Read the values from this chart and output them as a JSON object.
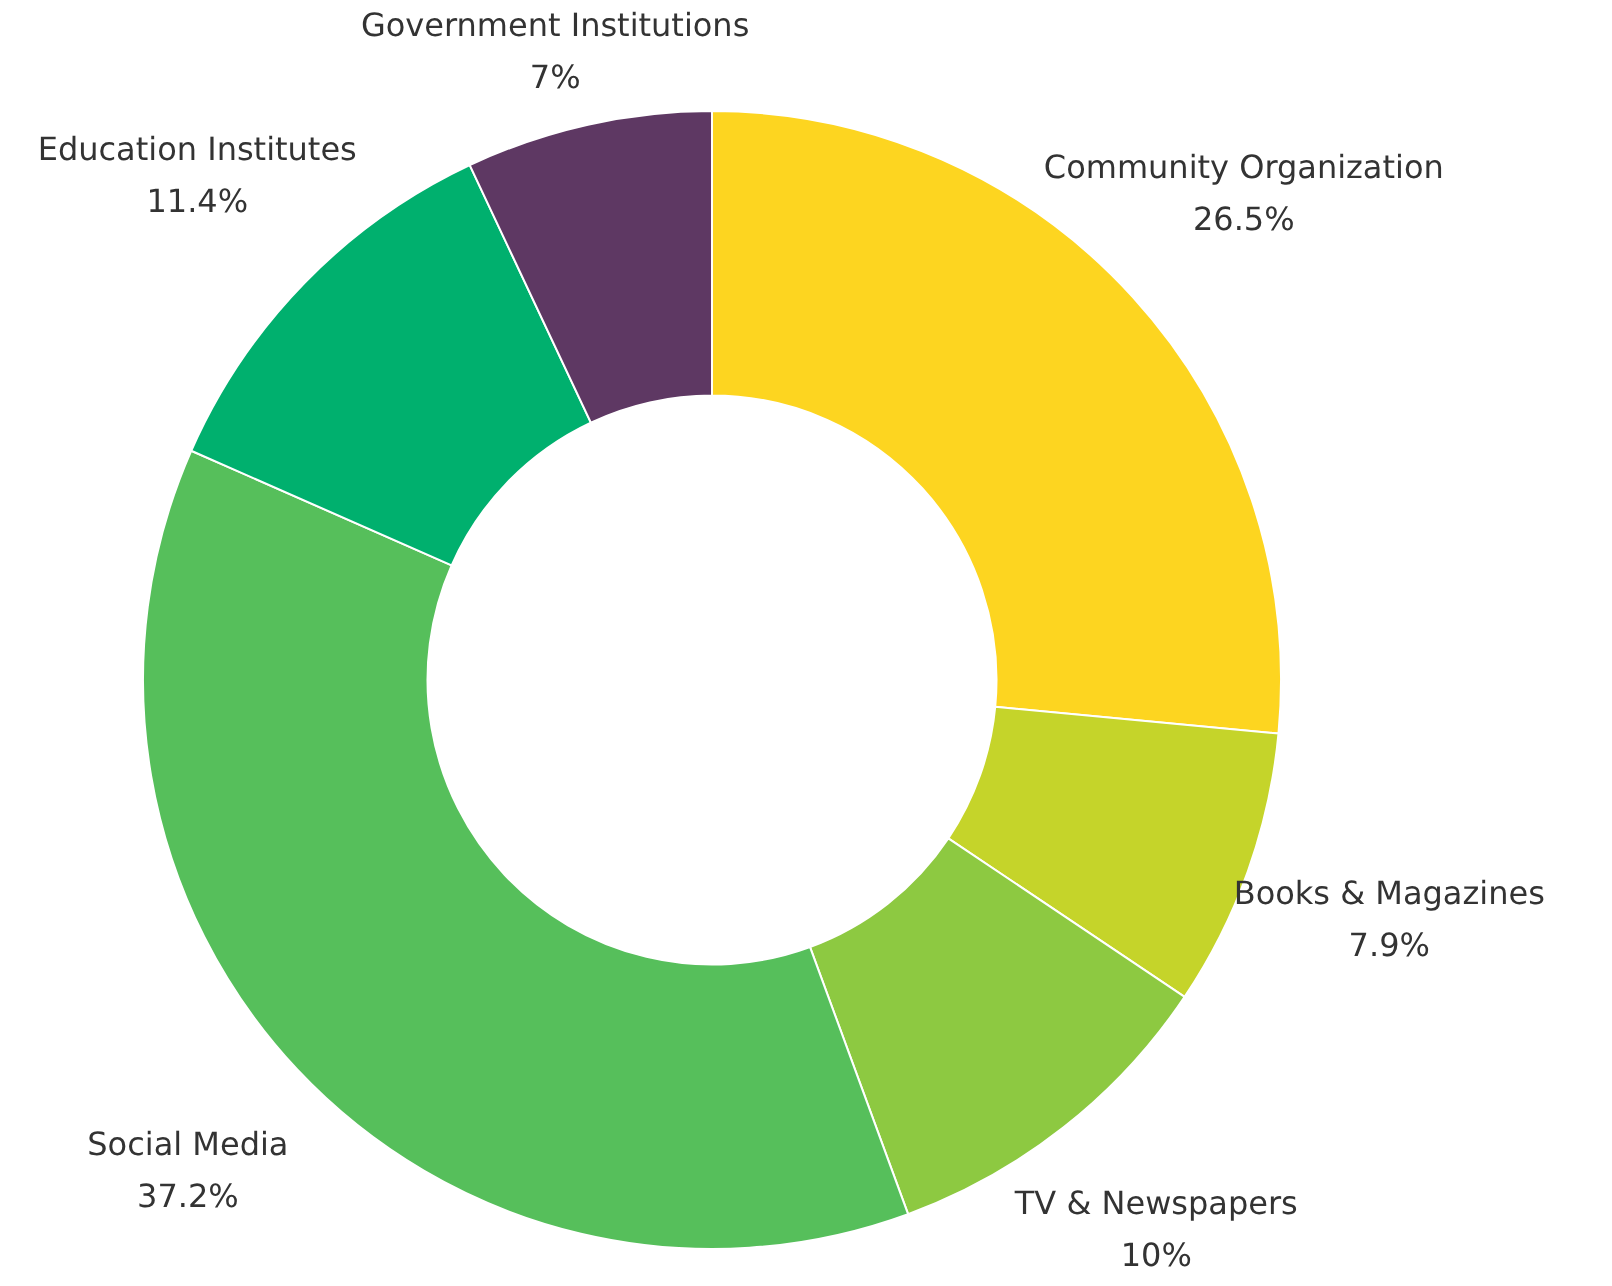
{
  "chart_data": {
    "type": "donut",
    "categories": [
      "Community Organization",
      "Books & Magazines",
      "TV & Newspapers",
      "Social Media",
      "Education Institutes",
      "Government Institutions"
    ],
    "values": [
      26.5,
      7.9,
      10,
      37.2,
      11.4,
      7
    ],
    "value_labels": [
      "26.5%",
      "7.9%",
      "10%",
      "37.2%",
      "11.4%",
      "7%"
    ],
    "colors": [
      "#fdd520",
      "#c5d42a",
      "#8dc941",
      "#56bf5b",
      "#00b06e",
      "#5e3863"
    ],
    "legend": false
  }
}
